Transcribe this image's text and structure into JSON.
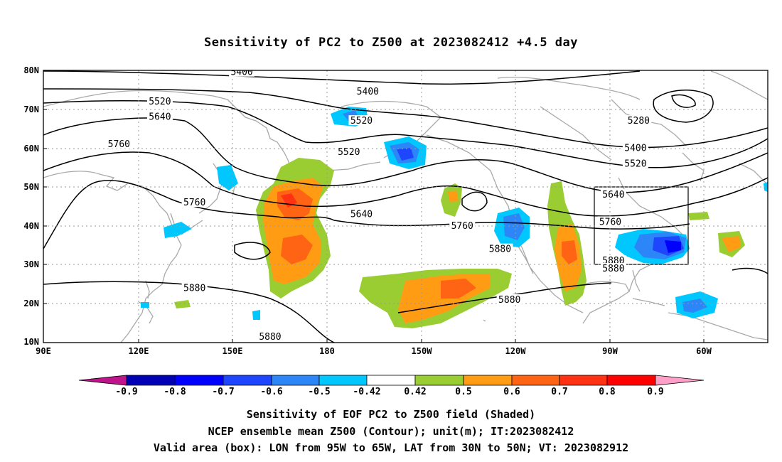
{
  "title": "Sensitivity of PC2 to Z500 at 2023082412 +4.5 day",
  "captions": {
    "line1": "Sensitivity of EOF PC2 to Z500 field (Shaded)",
    "line2": "NCEP ensemble mean Z500 (Contour); unit(m); IT:2023082412",
    "line3": "Valid area (box): LON from 95W to 65W, LAT from 30N to 50N; VT: 2023082912"
  },
  "map": {
    "lat_ticks": [
      "80N",
      "70N",
      "60N",
      "50N",
      "40N",
      "30N",
      "20N",
      "10N"
    ],
    "lon_ticks": [
      "90E",
      "120E",
      "150E",
      "180",
      "150W",
      "120W",
      "90W",
      "60W"
    ],
    "contour_labels": [
      {
        "text": "5400",
        "lon": 153,
        "lat": 79.5
      },
      {
        "text": "5400",
        "lon": -167,
        "lat": 74.5
      },
      {
        "text": "5520",
        "lon": 127,
        "lat": 72
      },
      {
        "text": "5640",
        "lon": 127,
        "lat": 68
      },
      {
        "text": "5760",
        "lon": 114,
        "lat": 61
      },
      {
        "text": "5520",
        "lon": -169,
        "lat": 67
      },
      {
        "text": "5520",
        "lon": -173,
        "lat": 59
      },
      {
        "text": "5280",
        "lon": -81,
        "lat": 67
      },
      {
        "text": "5400",
        "lon": -82,
        "lat": 60
      },
      {
        "text": "5520",
        "lon": -82,
        "lat": 56
      },
      {
        "text": "5640",
        "lon": -89,
        "lat": 48
      },
      {
        "text": "5760",
        "lon": -90,
        "lat": 41
      },
      {
        "text": "5760",
        "lon": 138,
        "lat": 46
      },
      {
        "text": "5640",
        "lon": -169,
        "lat": 43
      },
      {
        "text": "5760",
        "lon": -137,
        "lat": 40
      },
      {
        "text": "5880",
        "lon": -125,
        "lat": 34
      },
      {
        "text": "5880",
        "lon": -89,
        "lat": 31
      },
      {
        "text": "5880",
        "lon": -89,
        "lat": 29
      },
      {
        "text": "5880",
        "lon": -122,
        "lat": 21
      },
      {
        "text": "5880",
        "lon": 138,
        "lat": 24
      },
      {
        "text": "5880",
        "lon": 162,
        "lat": 11.5
      }
    ],
    "valid_box": {
      "lon_west": -95,
      "lon_east": -65,
      "lat_south": 30,
      "lat_north": 50
    }
  },
  "colorbar": {
    "labels": [
      "-0.9",
      "-0.8",
      "-0.7",
      "-0.6",
      "-0.5",
      "-0.42",
      "0.42",
      "0.5",
      "0.6",
      "0.7",
      "0.8",
      "0.9"
    ],
    "colors": {
      "neg_tip": "#c0148c",
      "c1": "#0000b4",
      "c2": "#0000ff",
      "c3": "#1e46ff",
      "c4": "#2c86f8",
      "c5": "#00c8ff",
      "white": "#ffffff",
      "c6": "#9acd32",
      "c7": "#ff9c14",
      "c8": "#ff6414",
      "c9": "#ff3214",
      "c10": "#ff0000",
      "pos_tip": "#ffa0c8"
    }
  }
}
